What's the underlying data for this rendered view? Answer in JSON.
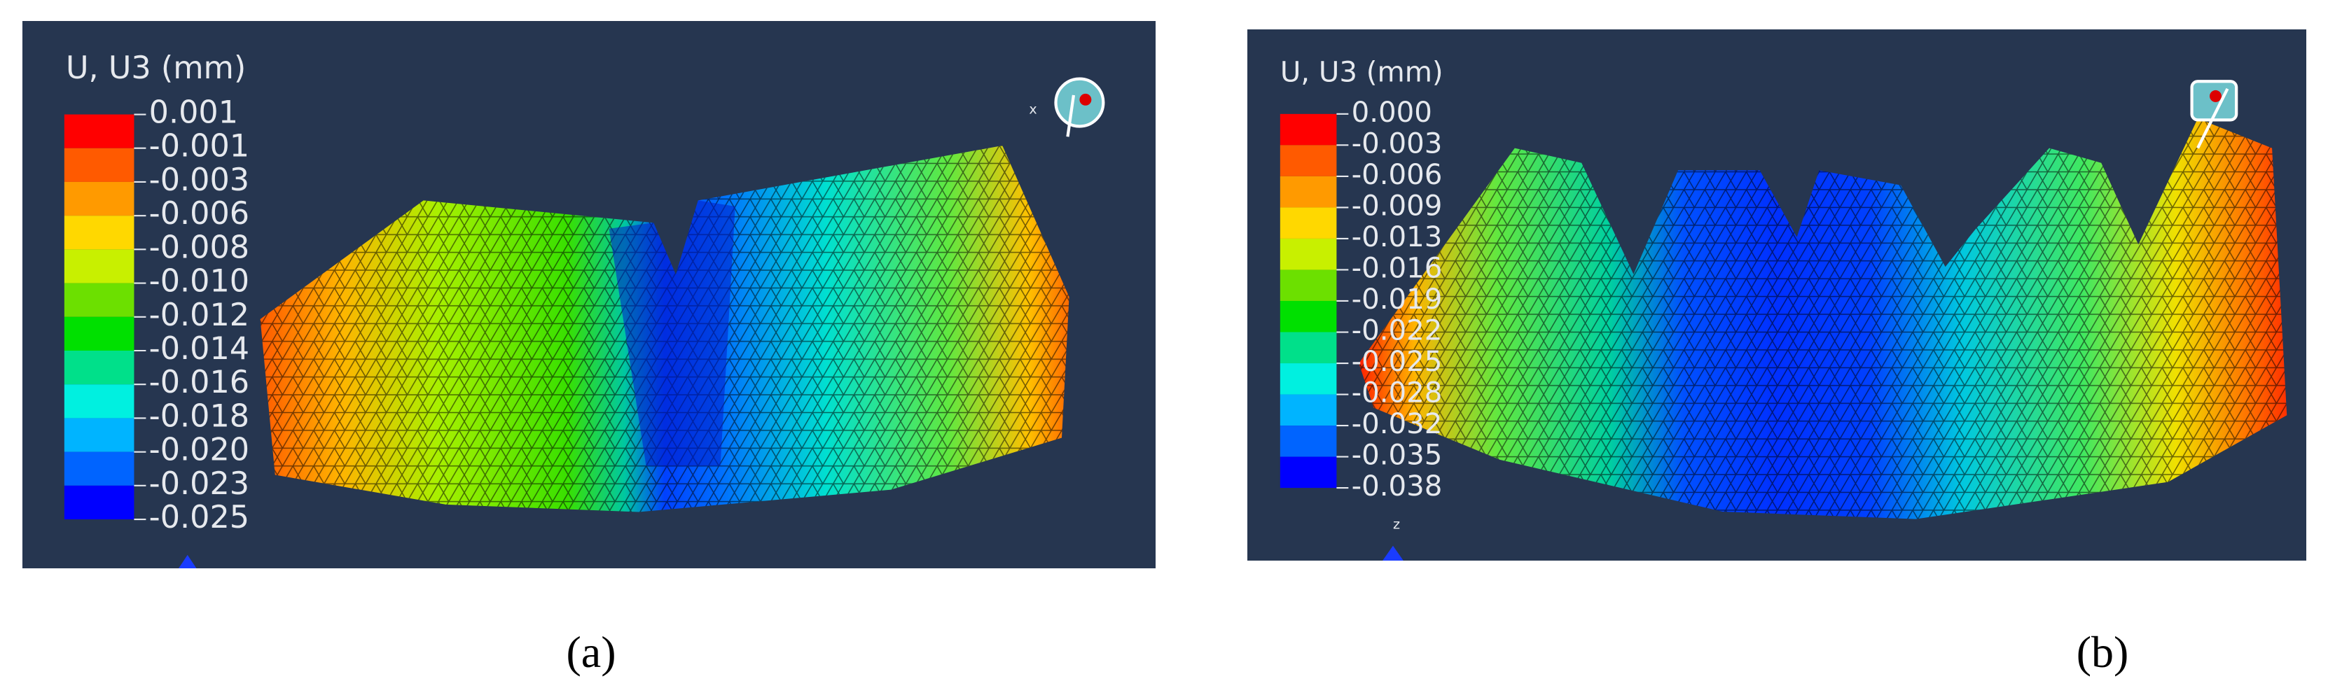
{
  "panels": [
    {
      "legend_title": "U, U3 (mm)",
      "legend_labels": [
        "0.001",
        "-0.001",
        "-0.003",
        "-0.006",
        "-0.008",
        "-0.010",
        "-0.012",
        "-0.014",
        "-0.016",
        "-0.018",
        "-0.020",
        "-0.023",
        "-0.025"
      ],
      "axis_labels": [
        "x"
      ],
      "caption": "(a)"
    },
    {
      "legend_title": "U, U3 (mm)",
      "legend_labels": [
        "0.000",
        "-0.003",
        "-0.006",
        "-0.009",
        "-0.013",
        "-0.016",
        "-0.019",
        "-0.022",
        "-0.025",
        "-0.028",
        "-0.032",
        "-0.035",
        "-0.038"
      ],
      "axis_labels": [
        "z"
      ],
      "caption": "(b)"
    }
  ]
}
